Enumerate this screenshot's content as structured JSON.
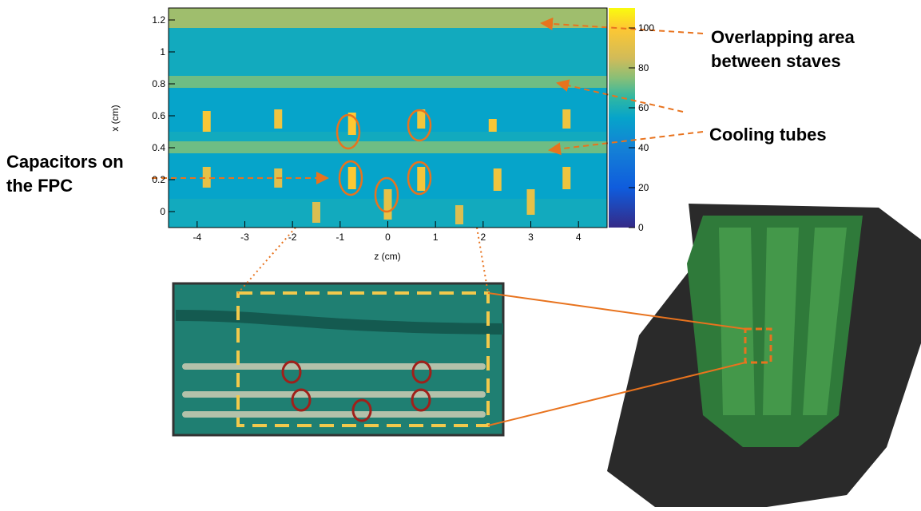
{
  "chart_data": {
    "type": "heatmap",
    "xlabel": "z (cm)",
    "ylabel": "x (cm)",
    "xlim": [
      -4.6,
      4.6
    ],
    "ylim": [
      -0.1,
      1.275
    ],
    "xticks": [
      -4,
      -3,
      -2,
      -1,
      0,
      1,
      2,
      3,
      4
    ],
    "yticks": [
      0,
      0.2,
      0.4,
      0.6,
      0.8,
      1,
      1.2
    ],
    "zlim": [
      0,
      110
    ],
    "zticks": [
      0,
      20,
      40,
      60,
      80,
      100
    ],
    "x_bins": [
      -0.1,
      0.08,
      0.365,
      0.44,
      0.5,
      0.775,
      0.85,
      1.15,
      1.275
    ],
    "band_values": [
      58,
      55,
      72,
      58,
      55,
      72,
      58,
      78
    ],
    "hotspots": [
      {
        "z": -3.8,
        "x0": 0.5,
        "x1": 0.63,
        "value": 98
      },
      {
        "z": -2.3,
        "x0": 0.52,
        "x1": 0.64,
        "value": 95
      },
      {
        "z": -0.75,
        "x0": 0.48,
        "x1": 0.62,
        "value": 100
      },
      {
        "z": 0.7,
        "x0": 0.52,
        "x1": 0.64,
        "value": 96
      },
      {
        "z": 2.2,
        "x0": 0.5,
        "x1": 0.58,
        "value": 98
      },
      {
        "z": 3.75,
        "x0": 0.52,
        "x1": 0.64,
        "value": 95
      },
      {
        "z": -3.8,
        "x0": 0.15,
        "x1": 0.28,
        "value": 92
      },
      {
        "z": -2.3,
        "x0": 0.15,
        "x1": 0.27,
        "value": 90
      },
      {
        "z": -0.75,
        "x0": 0.14,
        "x1": 0.28,
        "value": 100
      },
      {
        "z": 0.7,
        "x0": 0.13,
        "x1": 0.28,
        "value": 97
      },
      {
        "z": 2.3,
        "x0": 0.13,
        "x1": 0.27,
        "value": 95
      },
      {
        "z": 3.75,
        "x0": 0.14,
        "x1": 0.28,
        "value": 95
      },
      {
        "z": -1.5,
        "x0": -0.07,
        "x1": 0.06,
        "value": 88
      },
      {
        "z": 0,
        "x0": -0.05,
        "x1": 0.14,
        "value": 92
      },
      {
        "z": 1.5,
        "x0": -0.08,
        "x1": 0.04,
        "value": 88
      },
      {
        "z": 3,
        "x0": -0.02,
        "x1": 0.14,
        "value": 92
      }
    ],
    "annotations": [
      "Overlapping area between staves",
      "Cooling tubes",
      "Capacitors on the FPC"
    ]
  }
}
